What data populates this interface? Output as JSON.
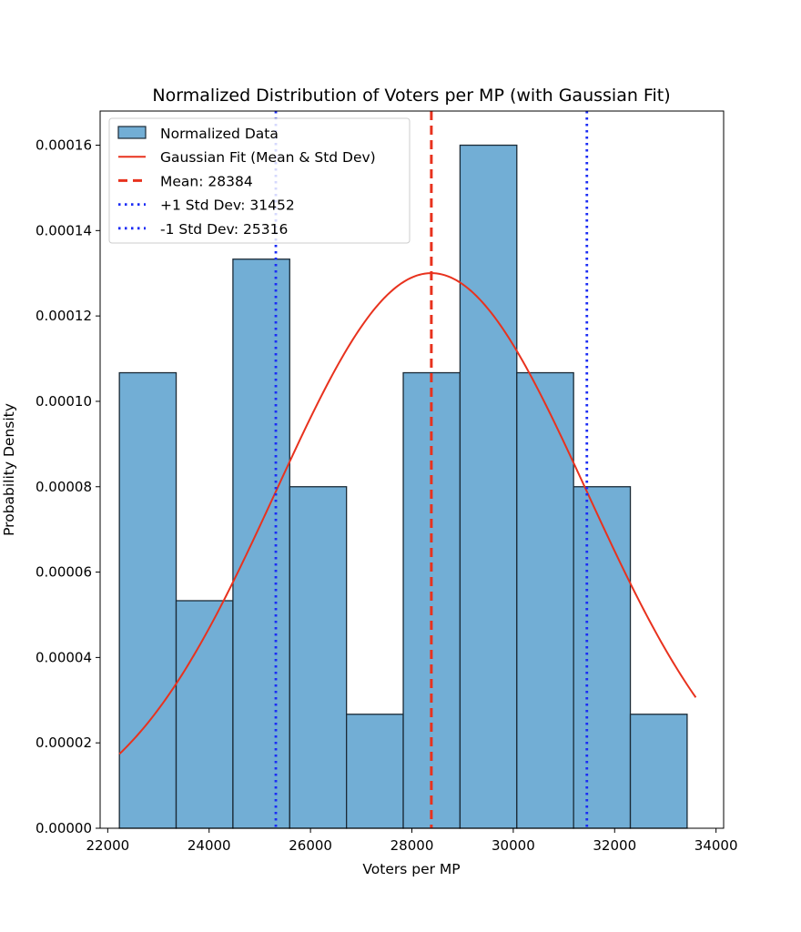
{
  "chart_data": {
    "type": "bar",
    "title": "Normalized Distribution of Voters per MP (with Gaussian Fit)",
    "xlabel": "Voters per MP",
    "ylabel": "Probability Density",
    "xlim": [
      21850,
      34150
    ],
    "ylim": [
      0,
      0.000168
    ],
    "x_ticks": [
      22000,
      24000,
      26000,
      28000,
      30000,
      32000,
      34000
    ],
    "x_tick_labels": [
      "22000",
      "24000",
      "26000",
      "28000",
      "30000",
      "32000",
      "34000"
    ],
    "y_ticks": [
      0,
      2e-05,
      4e-05,
      6e-05,
      8e-05,
      0.0001,
      0.00012,
      0.00014,
      0.00016
    ],
    "y_tick_labels": [
      "0.00000",
      "0.00002",
      "0.00004",
      "0.00006",
      "0.00008",
      "0.00010",
      "0.00012",
      "0.00014",
      "0.00016"
    ],
    "bin_edges": [
      22230,
      23350,
      24470,
      25590,
      26710,
      27830,
      28950,
      30070,
      31190,
      32310,
      33430
    ],
    "values": [
      0.0001067,
      5.33e-05,
      0.0001333,
      8e-05,
      2.67e-05,
      0.0001067,
      0.00016,
      0.0001067,
      8e-05,
      2.67e-05
    ],
    "mean": 28384,
    "std": 3068,
    "fit_range": [
      22230,
      33600
    ],
    "grid": false,
    "legend_placement": "top-left",
    "legend": [
      {
        "label": "Normalized Data",
        "kind": "patch"
      },
      {
        "label": "Gaussian Fit (Mean & Std Dev)",
        "kind": "line"
      },
      {
        "label": "Mean: 28384",
        "kind": "dashed"
      },
      {
        "label": "+1 Std Dev: 31452",
        "kind": "dotted"
      },
      {
        "label": "-1 Std Dev: 25316",
        "kind": "dotted"
      }
    ],
    "series": [
      {
        "name": "Normalized Data",
        "kind": "histogram"
      },
      {
        "name": "Gaussian Fit (Mean & Std Dev)",
        "kind": "curve"
      },
      {
        "name": "Mean: 28384",
        "kind": "vline",
        "x": 28384
      },
      {
        "name": "+1 Std Dev: 31452",
        "kind": "vline",
        "x": 31452
      },
      {
        "name": "-1 Std Dev: 25316",
        "kind": "vline",
        "x": 25316
      }
    ],
    "colors": {
      "bar_fill": "#72aed5",
      "bar_edge": "#1a2a36",
      "fit_line": "#e8321e",
      "mean_line": "#e8321e",
      "std_line": "#1b2cf5"
    }
  }
}
